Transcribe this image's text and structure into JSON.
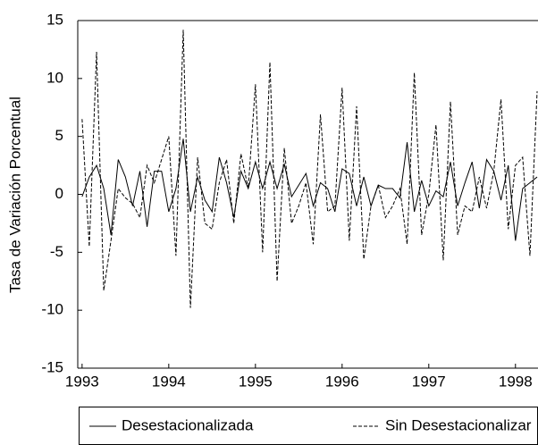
{
  "chart_data": {
    "type": "line",
    "y_label": "Tasa de Variación Porcentual",
    "x": [
      1993,
      1993.083,
      1993.167,
      1993.25,
      1993.333,
      1993.417,
      1993.5,
      1993.583,
      1993.667,
      1993.75,
      1993.833,
      1993.917,
      1994,
      1994.083,
      1994.167,
      1994.25,
      1994.333,
      1994.417,
      1994.5,
      1994.583,
      1994.667,
      1994.75,
      1994.833,
      1994.917,
      1995,
      1995.083,
      1995.167,
      1995.25,
      1995.333,
      1995.417,
      1995.5,
      1995.583,
      1995.667,
      1995.75,
      1995.833,
      1995.917,
      1996,
      1996.083,
      1996.167,
      1996.25,
      1996.333,
      1996.417,
      1996.5,
      1996.583,
      1996.667,
      1996.75,
      1996.833,
      1996.917,
      1997,
      1997.083,
      1997.167,
      1997.25,
      1997.333,
      1997.417,
      1997.5,
      1997.583,
      1997.667,
      1997.75,
      1997.833,
      1997.917,
      1998,
      1998.083,
      1998.167,
      1998.25
    ],
    "series": [
      {
        "name": "Desestacionalizada",
        "color": "#000000",
        "style": "solid",
        "values": [
          -0.2,
          1.5,
          2.5,
          0.5,
          -3.5,
          3,
          1.5,
          -1,
          2,
          -2.8,
          2,
          2,
          -1.5,
          0.5,
          4.8,
          -1.5,
          1.5,
          -0.5,
          -1.5,
          3.2,
          1,
          -2,
          2,
          0.5,
          2.8,
          0.5,
          2.8,
          0.5,
          2.6,
          -0.2,
          0.8,
          1.8,
          -1,
          1,
          0.5,
          -1.5,
          2.2,
          1.8,
          -1,
          1.5,
          -1,
          0.8,
          0.5,
          0.5,
          -0.3,
          4.5,
          -1.5,
          1.2,
          -1,
          0.3,
          -0.2,
          2.8,
          -1,
          1,
          2.8,
          -1.2,
          3,
          2,
          -0.5,
          2.5,
          -4,
          0.5,
          1,
          1.5
        ]
      },
      {
        "name": "Sin Desestacionalizar",
        "color": "#000000",
        "style": "dashed",
        "values": [
          6.5,
          -4.5,
          12.3,
          -8.3,
          -4,
          0.5,
          -0.3,
          -0.8,
          -2,
          2.5,
          1,
          3,
          5,
          -5.3,
          14.2,
          -9.8,
          3.2,
          -2.5,
          -3,
          1,
          3,
          -2.5,
          3.5,
          0.5,
          9.5,
          -5,
          11.4,
          -7.5,
          4,
          -2.5,
          -1,
          1,
          -4.3,
          6.9,
          -1.5,
          -1,
          9.2,
          -4,
          7.6,
          -5.6,
          -1,
          0.8,
          -2,
          -1,
          0.5,
          -4.3,
          10.5,
          -3.5,
          0,
          6,
          -5.7,
          8,
          -3.5,
          -1,
          -1.5,
          1.5,
          -1.2,
          2,
          8.2,
          -3,
          2.5,
          3.2,
          -5.3,
          8.9
        ]
      }
    ],
    "xlim": [
      1992.95,
      1998.26
    ],
    "xticks": [
      1993,
      1994,
      1995,
      1996,
      1997,
      1998
    ],
    "ylim": [
      -15,
      15
    ],
    "yticks": [
      15,
      10,
      5,
      0,
      -5,
      -10,
      -15
    ],
    "legend": "bottom"
  }
}
